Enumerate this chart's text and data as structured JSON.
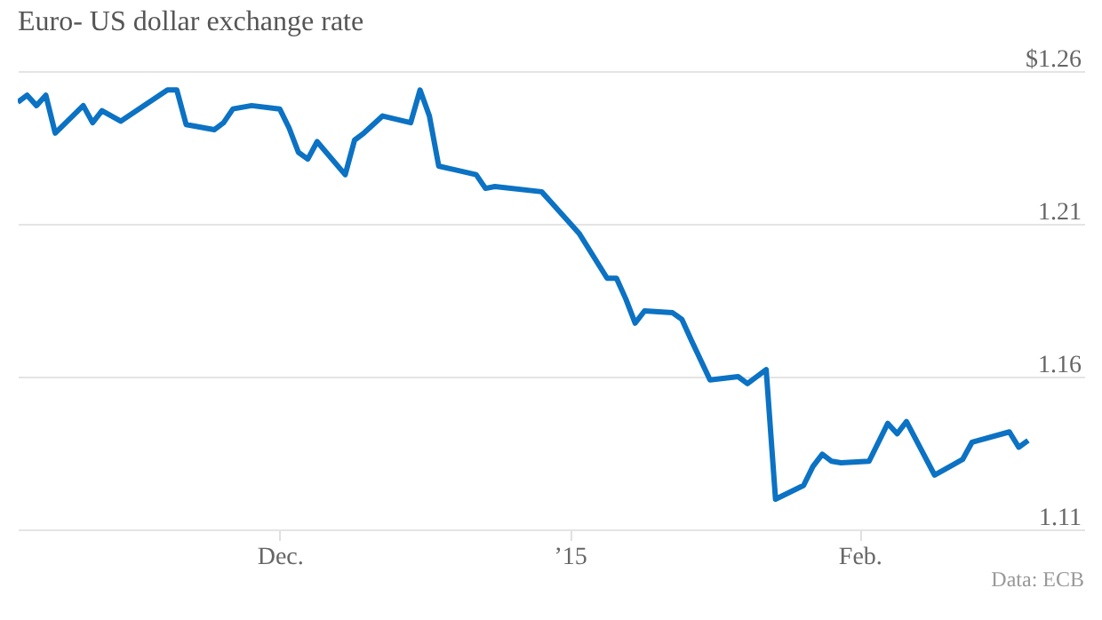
{
  "chart_data": {
    "type": "line",
    "title": "Euro- US dollar exchange rate",
    "x": [
      "2014-11-03",
      "2014-11-04",
      "2014-11-05",
      "2014-11-06",
      "2014-11-07",
      "2014-11-10",
      "2014-11-11",
      "2014-11-12",
      "2014-11-14",
      "2014-11-19",
      "2014-11-20",
      "2014-11-21",
      "2014-11-24",
      "2014-11-25",
      "2014-11-26",
      "2014-11-28",
      "2014-12-01",
      "2014-12-02",
      "2014-12-03",
      "2014-12-04",
      "2014-12-05",
      "2014-12-08",
      "2014-12-09",
      "2014-12-10",
      "2014-12-12",
      "2014-12-15",
      "2014-12-16",
      "2014-12-17",
      "2014-12-18",
      "2014-12-22",
      "2014-12-23",
      "2014-12-24",
      "2014-12-29",
      "2014-12-30",
      "2014-12-31",
      "2015-01-02",
      "2015-01-05",
      "2015-01-06",
      "2015-01-07",
      "2015-01-08",
      "2015-01-09",
      "2015-01-12",
      "2015-01-13",
      "2015-01-14",
      "2015-01-16",
      "2015-01-19",
      "2015-01-20",
      "2015-01-22",
      "2015-01-23",
      "2015-01-26",
      "2015-01-27",
      "2015-01-28",
      "2015-01-29",
      "2015-01-30",
      "2015-02-02",
      "2015-02-04",
      "2015-02-05",
      "2015-02-06",
      "2015-02-09",
      "2015-02-11",
      "2015-02-12",
      "2015-02-13",
      "2015-02-17",
      "2015-02-18",
      "2015-02-19"
    ],
    "series": [
      {
        "color": "#0b72c4",
        "values": [
          1.2498,
          1.2521,
          1.2487,
          1.2521,
          1.2397,
          1.2487,
          1.2431,
          1.247,
          1.2436,
          1.2538,
          1.2538,
          1.2425,
          1.2408,
          1.2431,
          1.2476,
          1.2487,
          1.2476,
          1.2414,
          1.2334,
          1.2312,
          1.2369,
          1.2261,
          1.2374,
          1.2397,
          1.2453,
          1.2431,
          1.2538,
          1.2453,
          1.2289,
          1.2261,
          1.2216,
          1.2222,
          1.2205,
          1.2171,
          1.2137,
          1.2069,
          1.1922,
          1.1922,
          1.1854,
          1.1775,
          1.1815,
          1.1809,
          1.1787,
          1.1719,
          1.1589,
          1.16,
          1.1577,
          1.1623,
          1.1199,
          1.1244,
          1.1306,
          1.1346,
          1.1323,
          1.1318,
          1.1323,
          1.1447,
          1.1413,
          1.1453,
          1.1278,
          1.1312,
          1.1329,
          1.1385,
          1.1419,
          1.1369,
          1.1391
        ]
      }
    ],
    "xlim": [
      "2014-11-03",
      "2015-02-25"
    ],
    "xticks": [
      {
        "value": "2014-12-01",
        "label": "Dec."
      },
      {
        "value": "2015-01-01",
        "label": "’15"
      },
      {
        "value": "2015-02-01",
        "label": "Feb."
      }
    ],
    "ylim": [
      1.11,
      1.26
    ],
    "yticks": [
      {
        "value": 1.11,
        "label": "1.11"
      },
      {
        "value": 1.16,
        "label": "1.16"
      },
      {
        "value": 1.21,
        "label": "1.21"
      },
      {
        "value": 1.26,
        "label": "$1.26"
      }
    ],
    "grid": "y",
    "line_style": "solid",
    "marker": "none",
    "annotations": [
      "Data: ECB"
    ]
  }
}
